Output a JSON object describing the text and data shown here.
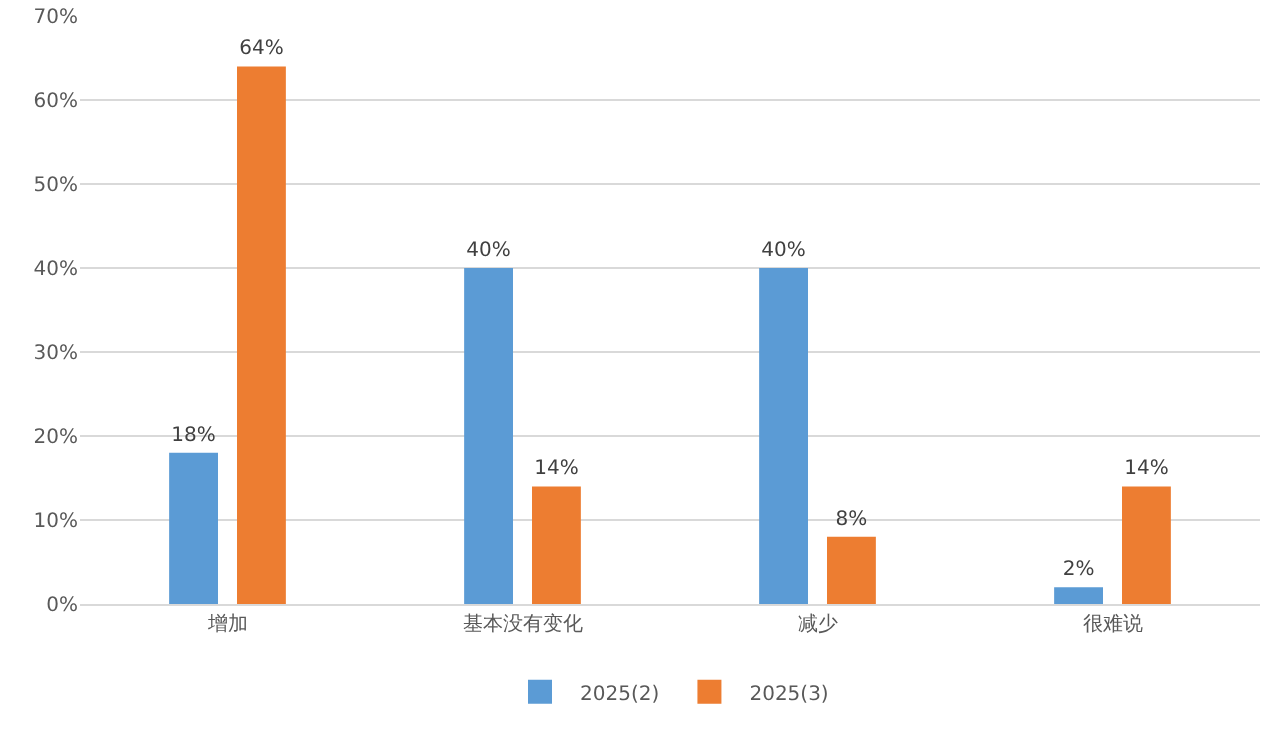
{
  "chart_data": {
    "type": "bar",
    "categories": [
      "增加",
      "基本没有变化",
      "减少",
      "很难说"
    ],
    "series": [
      {
        "name": "2025(2)",
        "color": "#5b9bd5",
        "values": [
          18,
          40,
          40,
          2
        ],
        "value_labels": [
          "18%",
          "40%",
          "40%",
          "2%"
        ]
      },
      {
        "name": "2025(3)",
        "color": "#ed7d31",
        "values": [
          64,
          14,
          8,
          14
        ],
        "value_labels": [
          "64%",
          "14%",
          "8%",
          "14%"
        ]
      }
    ],
    "ylim": [
      0,
      70
    ],
    "yticks": [
      {
        "value": 0,
        "label": "0%"
      },
      {
        "value": 10,
        "label": "10%"
      },
      {
        "value": 20,
        "label": "20%"
      },
      {
        "value": 30,
        "label": "30%"
      },
      {
        "value": 40,
        "label": "40%"
      },
      {
        "value": 50,
        "label": "50%"
      },
      {
        "value": 60,
        "label": "60%"
      },
      {
        "value": 70,
        "label": "70%"
      }
    ],
    "grid": "y",
    "legend": "bottom"
  }
}
